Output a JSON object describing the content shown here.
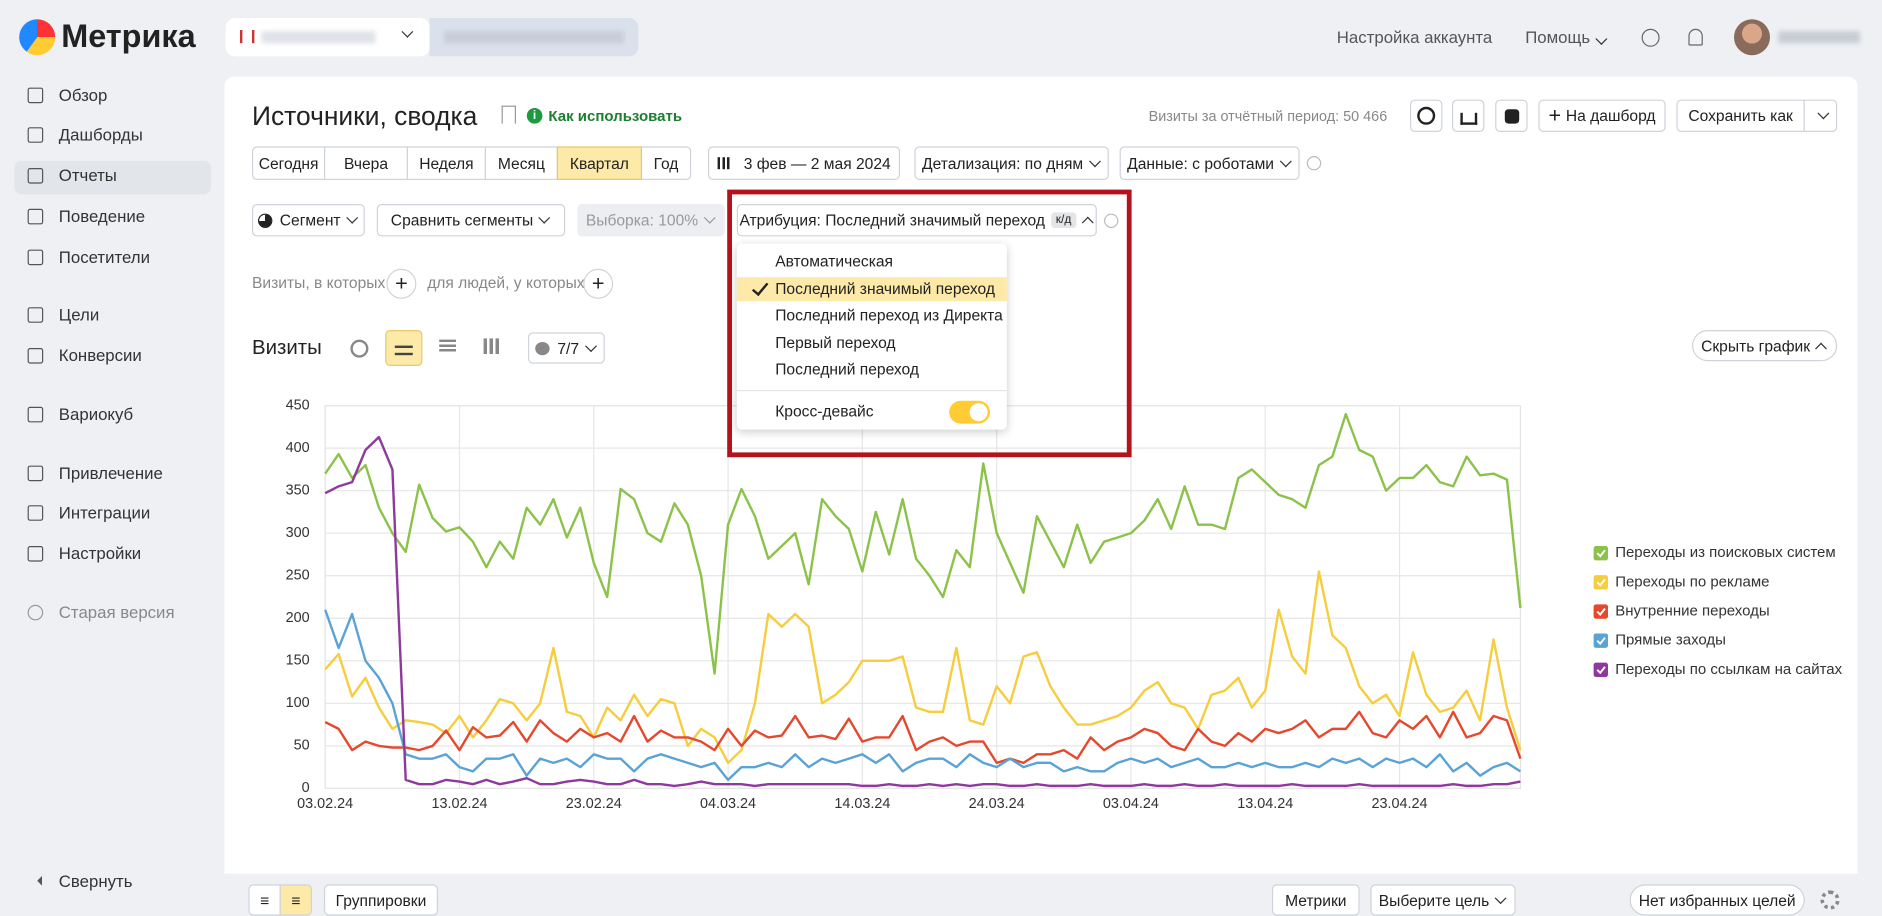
{
  "header": {
    "logo": "Метрика",
    "account_settings": "Настройка аккаунта",
    "help": "Помощь"
  },
  "sidebar": {
    "items": [
      "Обзор",
      "Дашборды",
      "Отчеты",
      "Поведение",
      "Посетители",
      "Цели",
      "Конверсии",
      "Вариокуб",
      "Привлечение",
      "Интеграции",
      "Настройки",
      "Старая версия"
    ],
    "collapse": "Свернуть"
  },
  "report": {
    "title": "Источники, сводка",
    "how_to": "Как использовать",
    "visits_total": "Визиты за отчётный период: 50 466",
    "to_dashboard": "На дашборд",
    "save_as": "Сохранить как",
    "periods": [
      "Сегодня",
      "Вчера",
      "Неделя",
      "Месяц",
      "Квартал",
      "Год"
    ],
    "date_range": "3 фев — 2 мая 2024",
    "detail": "Детализация: по дням",
    "data": "Данные: с роботами",
    "segment": "Сегмент",
    "compare": "Сравнить сегменты",
    "sample": "Выборка: 100%",
    "attribution": "Атрибуция: Последний значимый переход",
    "attribution_badge": "к/д",
    "visits_where": "Визиты, в которых",
    "people_where": "для людей, у которых",
    "metric": "Визиты",
    "series_count": "7/7",
    "hide_chart": "Скрыть график",
    "groupings": "Группировки",
    "metrics": "Метрики",
    "choose_goal": "Выберите цель",
    "no_goals": "Нет избранных целей"
  },
  "attribution_menu": {
    "options": [
      "Автоматическая",
      "Последний значимый переход",
      "Последний переход из Директа",
      "Первый переход",
      "Последний переход"
    ],
    "cross_device": "Кросс-девайс"
  },
  "chart_data": {
    "type": "line",
    "legend": "right",
    "grid": true,
    "categories": [
      "03.02.24",
      null,
      null,
      null,
      null,
      null,
      null,
      null,
      null,
      null,
      "13.02.24",
      null,
      null,
      null,
      null,
      null,
      null,
      null,
      null,
      null,
      "23.02.24",
      null,
      null,
      null,
      null,
      null,
      null,
      null,
      null,
      null,
      "04.03.24",
      null,
      null,
      null,
      null,
      null,
      null,
      null,
      null,
      null,
      "14.03.24",
      null,
      null,
      null,
      null,
      null,
      null,
      null,
      null,
      null,
      "24.03.24",
      null,
      null,
      null,
      null,
      null,
      null,
      null,
      null,
      null,
      "03.04.24",
      null,
      null,
      null,
      null,
      null,
      null,
      null,
      null,
      null,
      "13.04.24",
      null,
      null,
      null,
      null,
      null,
      null,
      null,
      null,
      null,
      "23.04.24",
      null,
      null,
      null,
      null,
      null,
      null,
      null,
      null,
      null
    ],
    "ylim": [
      0,
      450
    ],
    "yticks": [
      0,
      50,
      100,
      150,
      200,
      250,
      300,
      350,
      400,
      450
    ],
    "series": [
      {
        "name": "Переходы из поисковых систем",
        "color": "#8bc34a",
        "values": [
          370,
          393,
          365,
          380,
          330,
          300,
          278,
          357,
          318,
          302,
          307,
          290,
          260,
          290,
          270,
          330,
          310,
          340,
          295,
          330,
          265,
          225,
          352,
          340,
          300,
          290,
          335,
          310,
          250,
          135,
          310,
          352,
          320,
          270,
          285,
          300,
          240,
          340,
          320,
          305,
          255,
          325,
          275,
          340,
          270,
          250,
          225,
          280,
          260,
          382,
          300,
          265,
          230,
          320,
          290,
          260,
          310,
          265,
          290,
          295,
          300,
          315,
          340,
          305,
          355,
          310,
          310,
          305,
          365,
          375,
          360,
          345,
          340,
          330,
          380,
          390,
          440,
          398,
          390,
          350,
          365,
          365,
          380,
          360,
          355,
          390,
          368,
          370,
          363,
          212
        ]
      },
      {
        "name": "Переходы по рекламе",
        "color": "#f5cd3d",
        "values": [
          140,
          158,
          108,
          130,
          95,
          70,
          80,
          78,
          75,
          65,
          85,
          60,
          80,
          105,
          100,
          80,
          100,
          165,
          90,
          85,
          60,
          95,
          80,
          110,
          85,
          105,
          100,
          50,
          70,
          60,
          30,
          45,
          100,
          205,
          190,
          205,
          190,
          100,
          110,
          125,
          150,
          150,
          150,
          155,
          95,
          90,
          90,
          165,
          80,
          75,
          120,
          100,
          155,
          160,
          120,
          95,
          75,
          75,
          80,
          85,
          95,
          115,
          125,
          100,
          95,
          70,
          110,
          115,
          130,
          95,
          115,
          210,
          155,
          135,
          255,
          180,
          165,
          120,
          100,
          110,
          85,
          160,
          110,
          90,
          95,
          115,
          80,
          175,
          95,
          45
        ]
      },
      {
        "name": "Внутренние переходы",
        "color": "#e5482d",
        "values": [
          78,
          70,
          45,
          55,
          50,
          48,
          48,
          45,
          50,
          68,
          45,
          72,
          60,
          62,
          78,
          55,
          80,
          65,
          55,
          70,
          60,
          65,
          55,
          85,
          55,
          68,
          60,
          60,
          55,
          45,
          70,
          50,
          68,
          60,
          62,
          85,
          60,
          62,
          58,
          82,
          55,
          60,
          60,
          85,
          45,
          55,
          60,
          50,
          55,
          55,
          30,
          35,
          30,
          40,
          40,
          45,
          35,
          60,
          45,
          55,
          60,
          70,
          65,
          50,
          45,
          70,
          55,
          50,
          65,
          55,
          70,
          65,
          70,
          80,
          60,
          70,
          70,
          90,
          65,
          60,
          80,
          70,
          85,
          60,
          90,
          60,
          65,
          85,
          80,
          35
        ]
      },
      {
        "name": "Прямые заходы",
        "color": "#5aa3d6",
        "values": [
          210,
          165,
          205,
          150,
          130,
          100,
          40,
          35,
          35,
          40,
          25,
          20,
          35,
          35,
          40,
          15,
          35,
          30,
          35,
          25,
          40,
          35,
          35,
          20,
          35,
          40,
          35,
          30,
          25,
          30,
          10,
          25,
          25,
          30,
          25,
          40,
          25,
          35,
          30,
          35,
          40,
          30,
          40,
          20,
          30,
          35,
          35,
          25,
          40,
          30,
          25,
          35,
          25,
          30,
          30,
          20,
          25,
          20,
          20,
          30,
          35,
          30,
          35,
          25,
          30,
          35,
          25,
          25,
          30,
          25,
          30,
          25,
          25,
          30,
          25,
          35,
          30,
          35,
          25,
          35,
          30,
          35,
          25,
          40,
          20,
          30,
          15,
          25,
          30,
          20
        ]
      },
      {
        "name": "Переходы по ссылкам на сайтах",
        "color": "#8e3a9d",
        "values": [
          347,
          355,
          360,
          398,
          413,
          375,
          10,
          5,
          5,
          10,
          8,
          5,
          10,
          5,
          8,
          12,
          5,
          5,
          8,
          10,
          8,
          5,
          5,
          10,
          5,
          5,
          3,
          5,
          8,
          5,
          5,
          5,
          3,
          5,
          5,
          5,
          5,
          5,
          5,
          5,
          3,
          3,
          5,
          3,
          3,
          5,
          3,
          5,
          3,
          5,
          5,
          3,
          3,
          5,
          3,
          3,
          3,
          5,
          3,
          3,
          3,
          5,
          3,
          3,
          5,
          3,
          3,
          5,
          3,
          3,
          3,
          3,
          5,
          3,
          3,
          3,
          3,
          5,
          3,
          3,
          3,
          3,
          3,
          3,
          5,
          3,
          3,
          5,
          5,
          8
        ]
      }
    ]
  }
}
